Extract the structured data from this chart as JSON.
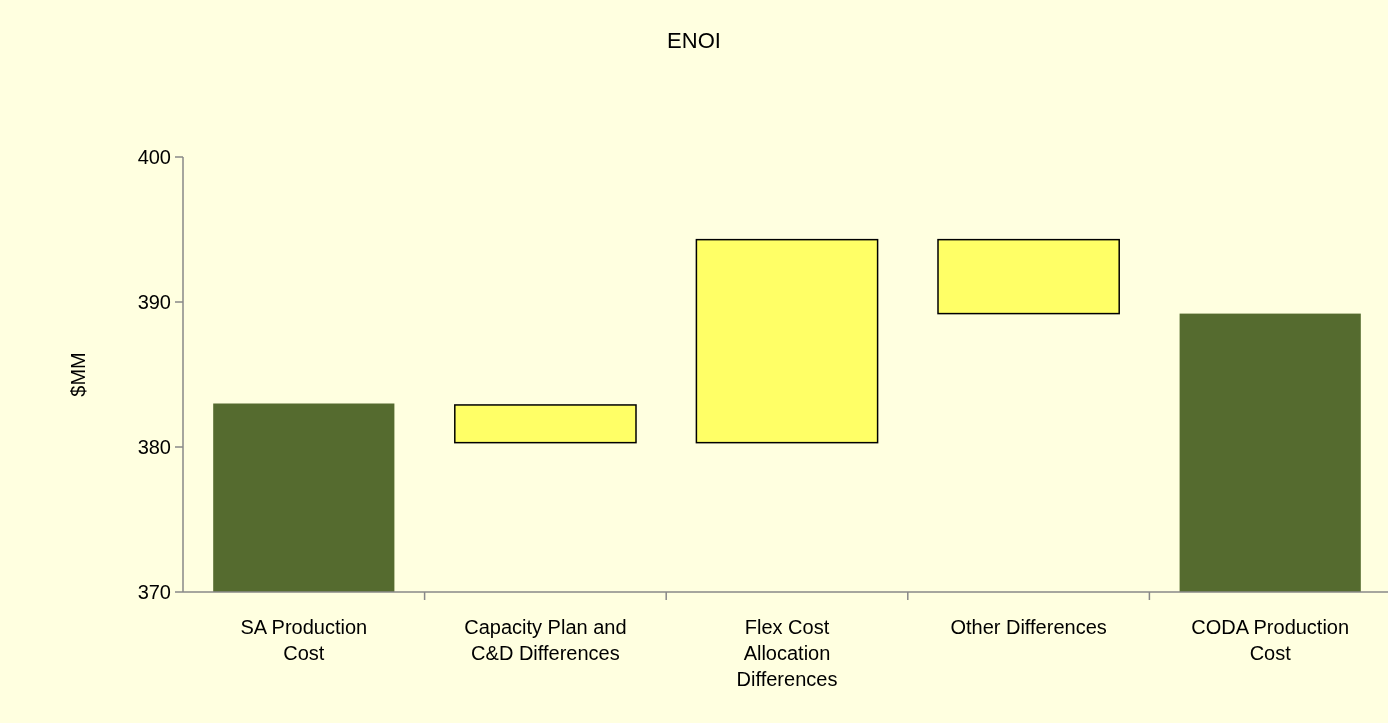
{
  "chart_data": {
    "type": "bar",
    "title": "ENOI",
    "ylabel": "$MM",
    "categories": [
      "SA Production Cost",
      "Capacity Plan and C&D Differences",
      "Flex Cost Allocation Differences",
      "Other Differences",
      "CODA Production Cost"
    ],
    "values": [
      13,
      2.6,
      14,
      5.1,
      19.2
    ],
    "base": [
      370,
      380.3,
      380.3,
      389.2,
      370
    ],
    "colors": [
      "#556b2f",
      "#ffff66",
      "#ffff66",
      "#ffff66",
      "#556b2f"
    ],
    "ylim": [
      370,
      400
    ],
    "yticks": [
      370,
      380,
      390,
      400
    ],
    "grid": false
  }
}
